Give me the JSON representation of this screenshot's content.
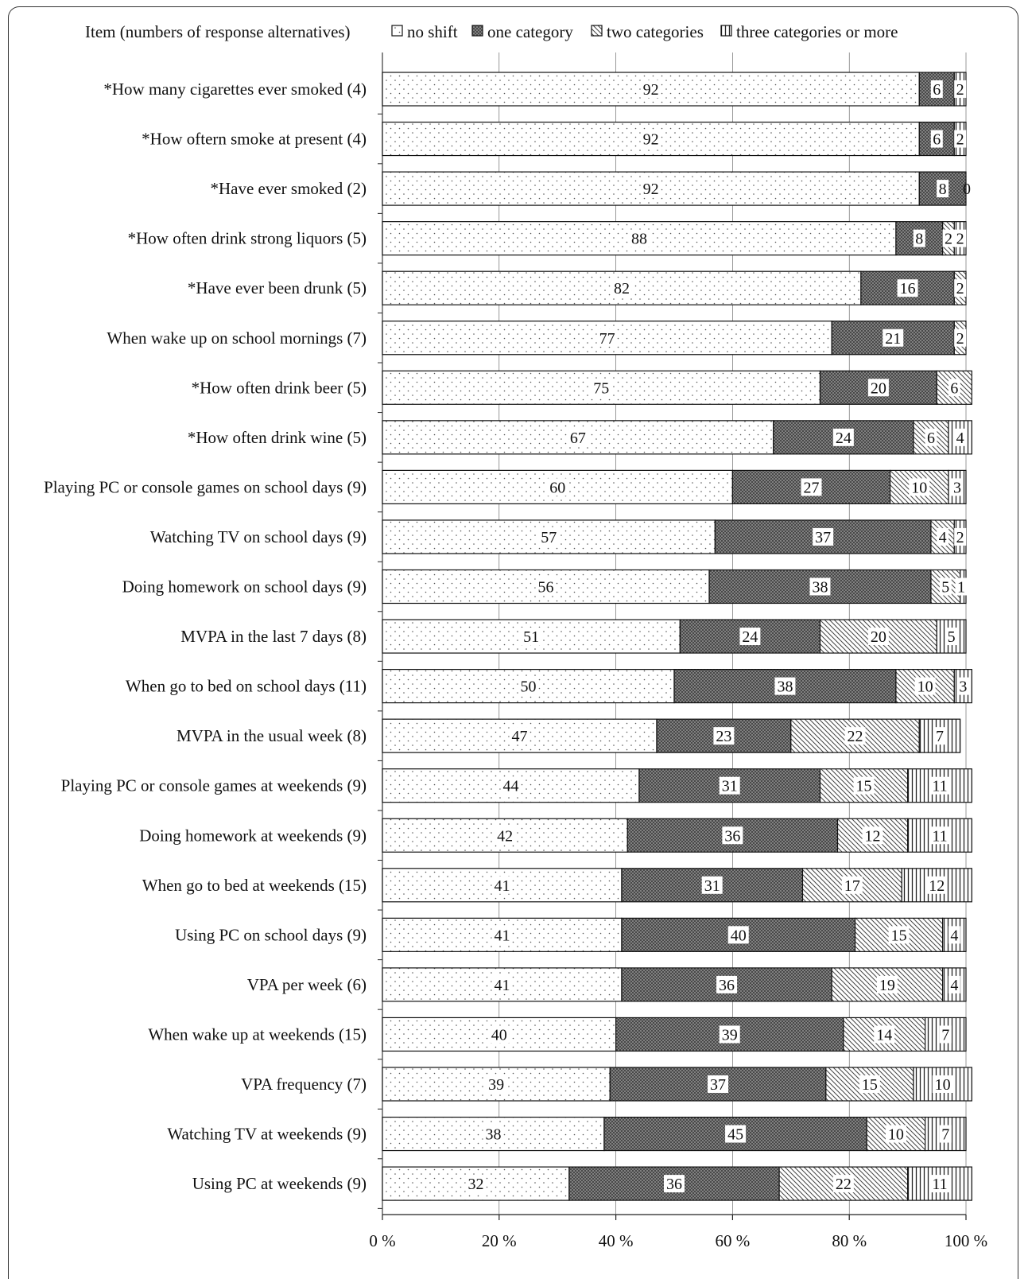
{
  "chart_data": {
    "type": "bar",
    "orientation": "horizontal",
    "stacked": "percent",
    "legend_title": "Item (numbers of response alternatives)",
    "legend_position": "top",
    "xlim": [
      0,
      100
    ],
    "x_ticks": [
      "0 %",
      "20 %",
      "40 %",
      "60 %",
      "80 %",
      "100 %"
    ],
    "grid": false,
    "categories": [
      "*How many cigarettes ever smoked (4)",
      "*How oftern smoke at present (4)",
      "*Have ever smoked (2)",
      "*How often drink strong liquors (5)",
      "*Have ever been drunk (5)",
      "When wake up on school mornings (7)",
      "*How often drink beer (5)",
      "*How often drink wine (5)",
      "Playing PC or console games on school days  (9)",
      "Watching TV on school days (9)",
      "Doing homework on school days (9)",
      "MVPA in the last 7 days (8)",
      "When go to bed on school days (11)",
      "MVPA in the usual week (8)",
      "Playing PC or console games at weekends (9)",
      "Doing homework at weekends (9)",
      "When go to bed at weekends (15)",
      "Using PC on school days (9)",
      "VPA per week (6)",
      "When wake up at weekends (15)",
      "VPA frequency (7)",
      "Watching TV at weekends  (9)",
      "Using PC at weekends (9)"
    ],
    "series": [
      {
        "name": "no shift",
        "pattern": "dots",
        "values": [
          92,
          92,
          92,
          88,
          82,
          77,
          75,
          67,
          60,
          57,
          56,
          51,
          50,
          47,
          44,
          42,
          41,
          41,
          41,
          40,
          39,
          38,
          32
        ]
      },
      {
        "name": "one category",
        "pattern": "dense-crosshatch",
        "values": [
          6,
          6,
          8,
          8,
          16,
          21,
          20,
          24,
          27,
          37,
          38,
          24,
          38,
          23,
          31,
          36,
          31,
          40,
          36,
          39,
          37,
          45,
          36
        ]
      },
      {
        "name": "two categories",
        "pattern": "diagonal",
        "values": [
          0,
          0,
          0,
          2,
          2,
          2,
          6,
          6,
          10,
          4,
          5,
          20,
          10,
          22,
          15,
          12,
          17,
          15,
          19,
          14,
          15,
          10,
          22
        ]
      },
      {
        "name": "three categories or more",
        "pattern": "vertical",
        "values": [
          2,
          2,
          0,
          2,
          0,
          0,
          0,
          4,
          3,
          2,
          1,
          5,
          3,
          7,
          11,
          11,
          12,
          4,
          4,
          7,
          10,
          7,
          11
        ]
      }
    ]
  }
}
